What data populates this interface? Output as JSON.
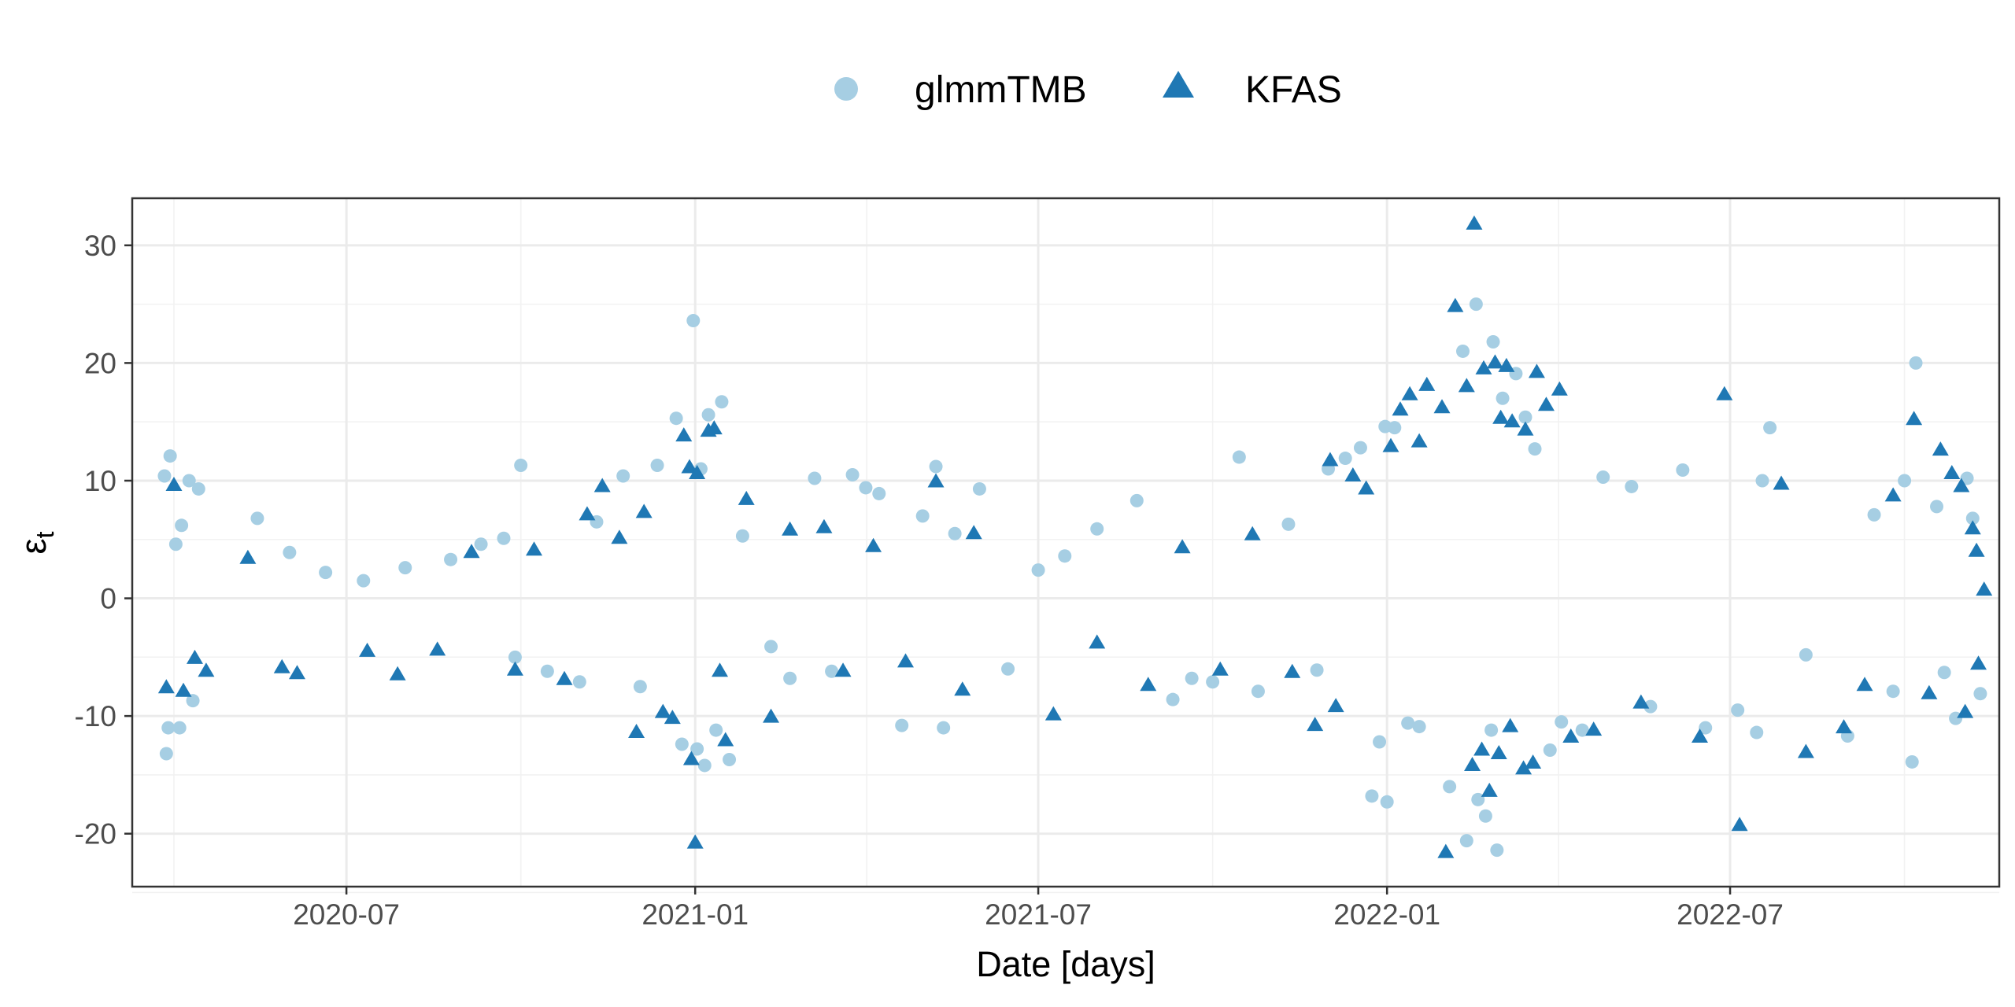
{
  "chart_data": {
    "type": "scatter",
    "xlabel": "Date [days]",
    "ylabel": "ε",
    "ylabel_subscript": "t",
    "legend_position": "top",
    "grid": true,
    "x_range": [
      "2020-03-10",
      "2022-11-20"
    ],
    "ylim": [
      -24.5,
      34
    ],
    "x_ticks": [
      {
        "date": "2020-07-01",
        "label": "2020-07"
      },
      {
        "date": "2021-01-01",
        "label": "2021-01"
      },
      {
        "date": "2021-07-01",
        "label": "2021-07"
      },
      {
        "date": "2022-01-01",
        "label": "2022-01"
      },
      {
        "date": "2022-07-01",
        "label": "2022-07"
      }
    ],
    "y_ticks": [
      -20,
      -10,
      0,
      10,
      20,
      30
    ],
    "series": [
      {
        "name": "glmmTMB",
        "marker": "circle",
        "color": "#a6cee3",
        "points": [
          [
            "2020-03-30",
            12.1
          ],
          [
            "2020-03-27",
            10.4
          ],
          [
            "2020-04-05",
            6.2
          ],
          [
            "2020-04-09",
            10.0
          ],
          [
            "2020-04-14",
            9.3
          ],
          [
            "2020-03-28",
            -13.2
          ],
          [
            "2020-03-29",
            -11.0
          ],
          [
            "2020-04-04",
            -11.0
          ],
          [
            "2020-04-11",
            -8.7
          ],
          [
            "2020-04-02",
            4.6
          ],
          [
            "2020-05-15",
            6.8
          ],
          [
            "2020-06-01",
            3.9
          ],
          [
            "2020-06-20",
            2.2
          ],
          [
            "2020-07-10",
            1.5
          ],
          [
            "2020-08-01",
            2.6
          ],
          [
            "2020-08-25",
            3.3
          ],
          [
            "2020-09-10",
            4.6
          ],
          [
            "2020-09-22",
            5.1
          ],
          [
            "2020-10-01",
            11.3
          ],
          [
            "2020-09-28",
            -5.0
          ],
          [
            "2020-10-15",
            -6.2
          ],
          [
            "2020-11-01",
            -7.1
          ],
          [
            "2020-11-10",
            6.5
          ],
          [
            "2020-11-24",
            10.4
          ],
          [
            "2020-12-03",
            -7.5
          ],
          [
            "2020-12-12",
            11.3
          ],
          [
            "2020-12-22",
            15.3
          ],
          [
            "2020-12-31",
            23.6
          ],
          [
            "2021-01-04",
            11.0
          ],
          [
            "2021-01-08",
            15.6
          ],
          [
            "2021-01-15",
            16.7
          ],
          [
            "2020-12-25",
            -12.4
          ],
          [
            "2021-01-02",
            -12.8
          ],
          [
            "2021-01-06",
            -14.2
          ],
          [
            "2021-01-12",
            -11.2
          ],
          [
            "2021-01-19",
            -13.7
          ],
          [
            "2021-01-26",
            5.3
          ],
          [
            "2021-02-10",
            -4.1
          ],
          [
            "2021-02-20",
            -6.8
          ],
          [
            "2021-03-05",
            10.2
          ],
          [
            "2021-03-14",
            -6.2
          ],
          [
            "2021-03-25",
            10.5
          ],
          [
            "2021-04-01",
            9.4
          ],
          [
            "2021-04-08",
            8.9
          ],
          [
            "2021-04-20",
            -10.8
          ],
          [
            "2021-05-01",
            7.0
          ],
          [
            "2021-05-08",
            11.2
          ],
          [
            "2021-05-12",
            -11.0
          ],
          [
            "2021-05-18",
            5.5
          ],
          [
            "2021-05-31",
            9.3
          ],
          [
            "2021-06-15",
            -6.0
          ],
          [
            "2021-07-01",
            2.4
          ],
          [
            "2021-07-15",
            3.6
          ],
          [
            "2021-08-01",
            5.9
          ],
          [
            "2021-08-22",
            8.3
          ],
          [
            "2021-09-10",
            -8.6
          ],
          [
            "2021-09-20",
            -6.8
          ],
          [
            "2021-10-01",
            -7.1
          ],
          [
            "2021-10-15",
            12.0
          ],
          [
            "2021-10-25",
            -7.9
          ],
          [
            "2021-11-10",
            6.3
          ],
          [
            "2021-11-25",
            -6.1
          ],
          [
            "2021-12-01",
            11.0
          ],
          [
            "2021-12-10",
            11.9
          ],
          [
            "2021-12-18",
            12.8
          ],
          [
            "2021-12-28",
            -12.2
          ],
          [
            "2021-12-24",
            -16.8
          ],
          [
            "2022-01-01",
            -17.3
          ],
          [
            "2021-12-31",
            14.6
          ],
          [
            "2022-01-05",
            14.5
          ],
          [
            "2022-01-12",
            -10.6
          ],
          [
            "2022-01-18",
            -10.9
          ],
          [
            "2022-02-03",
            -16.0
          ],
          [
            "2022-02-12",
            -20.6
          ],
          [
            "2022-02-18",
            -17.1
          ],
          [
            "2022-02-22",
            -18.5
          ],
          [
            "2022-02-28",
            -21.4
          ],
          [
            "2022-02-25",
            -11.2
          ],
          [
            "2022-02-10",
            21.0
          ],
          [
            "2022-02-17",
            25.0
          ],
          [
            "2022-02-26",
            21.8
          ],
          [
            "2022-03-03",
            17.0
          ],
          [
            "2022-03-10",
            19.1
          ],
          [
            "2022-03-15",
            15.4
          ],
          [
            "2022-03-20",
            12.7
          ],
          [
            "2022-03-28",
            -12.9
          ],
          [
            "2022-04-03",
            -10.5
          ],
          [
            "2022-04-14",
            -11.2
          ],
          [
            "2022-04-25",
            10.3
          ],
          [
            "2022-05-10",
            9.5
          ],
          [
            "2022-05-20",
            -9.2
          ],
          [
            "2022-06-06",
            10.9
          ],
          [
            "2022-06-18",
            -11.0
          ],
          [
            "2022-07-05",
            -9.5
          ],
          [
            "2022-07-18",
            10.0
          ],
          [
            "2022-07-22",
            14.5
          ],
          [
            "2022-07-15",
            -11.4
          ],
          [
            "2022-08-10",
            -4.8
          ],
          [
            "2022-09-01",
            -11.7
          ],
          [
            "2022-09-15",
            7.1
          ],
          [
            "2022-09-25",
            -7.9
          ],
          [
            "2022-10-01",
            10.0
          ],
          [
            "2022-10-05",
            -13.9
          ],
          [
            "2022-10-07",
            20.0
          ],
          [
            "2022-10-18",
            7.8
          ],
          [
            "2022-10-28",
            -10.2
          ],
          [
            "2022-11-03",
            10.2
          ],
          [
            "2022-11-10",
            -8.1
          ],
          [
            "2022-11-06",
            6.8
          ],
          [
            "2022-10-22",
            -6.3
          ]
        ]
      },
      {
        "name": "KFAS",
        "marker": "triangle",
        "color": "#1f78b4",
        "points": [
          [
            "2020-03-28",
            -7.6
          ],
          [
            "2020-04-01",
            9.6
          ],
          [
            "2020-04-06",
            -7.9
          ],
          [
            "2020-04-12",
            -5.1
          ],
          [
            "2020-04-18",
            -6.2
          ],
          [
            "2020-05-10",
            3.4
          ],
          [
            "2020-05-28",
            -5.9
          ],
          [
            "2020-06-05",
            -6.4
          ],
          [
            "2020-07-12",
            -4.5
          ],
          [
            "2020-07-28",
            -6.5
          ],
          [
            "2020-08-18",
            -4.4
          ],
          [
            "2020-09-05",
            3.9
          ],
          [
            "2020-09-28",
            -6.1
          ],
          [
            "2020-10-08",
            4.1
          ],
          [
            "2020-10-24",
            -6.9
          ],
          [
            "2020-11-05",
            7.1
          ],
          [
            "2020-11-13",
            9.5
          ],
          [
            "2020-11-22",
            5.1
          ],
          [
            "2020-12-05",
            7.3
          ],
          [
            "2020-12-01",
            -11.4
          ],
          [
            "2020-12-15",
            -9.7
          ],
          [
            "2020-12-20",
            -10.2
          ],
          [
            "2020-12-26",
            13.8
          ],
          [
            "2020-12-29",
            11.1
          ],
          [
            "2021-01-02",
            10.6
          ],
          [
            "2021-01-08",
            14.2
          ],
          [
            "2021-01-11",
            14.4
          ],
          [
            "2021-01-01",
            -20.8
          ],
          [
            "2020-12-30",
            -13.7
          ],
          [
            "2021-01-14",
            -6.2
          ],
          [
            "2021-01-17",
            -12.1
          ],
          [
            "2021-01-28",
            8.4
          ],
          [
            "2021-02-10",
            -10.1
          ],
          [
            "2021-02-20",
            5.8
          ],
          [
            "2021-03-10",
            6.0
          ],
          [
            "2021-03-20",
            -6.2
          ],
          [
            "2021-04-05",
            4.4
          ],
          [
            "2021-04-22",
            -5.4
          ],
          [
            "2021-05-08",
            9.9
          ],
          [
            "2021-05-22",
            -7.8
          ],
          [
            "2021-05-28",
            5.5
          ],
          [
            "2021-07-09",
            -9.9
          ],
          [
            "2021-08-01",
            -3.8
          ],
          [
            "2021-08-28",
            -7.4
          ],
          [
            "2021-09-15",
            4.3
          ],
          [
            "2021-10-05",
            -6.1
          ],
          [
            "2021-10-22",
            5.4
          ],
          [
            "2021-11-12",
            -6.3
          ],
          [
            "2021-11-24",
            -10.8
          ],
          [
            "2021-12-05",
            -9.2
          ],
          [
            "2021-12-02",
            11.7
          ],
          [
            "2021-12-14",
            10.4
          ],
          [
            "2021-12-21",
            9.3
          ],
          [
            "2022-01-03",
            12.9
          ],
          [
            "2022-01-08",
            16.0
          ],
          [
            "2022-01-13",
            17.3
          ],
          [
            "2022-01-18",
            13.3
          ],
          [
            "2022-01-22",
            18.1
          ],
          [
            "2022-01-30",
            16.2
          ],
          [
            "2022-02-06",
            24.8
          ],
          [
            "2022-02-12",
            18.0
          ],
          [
            "2022-02-16",
            31.8
          ],
          [
            "2022-02-21",
            19.5
          ],
          [
            "2022-02-27",
            20.0
          ],
          [
            "2022-03-05",
            19.7
          ],
          [
            "2022-03-02",
            15.3
          ],
          [
            "2022-03-08",
            15.0
          ],
          [
            "2022-03-15",
            14.3
          ],
          [
            "2022-03-21",
            19.2
          ],
          [
            "2022-03-26",
            16.4
          ],
          [
            "2022-04-02",
            17.7
          ],
          [
            "2022-02-01",
            -21.6
          ],
          [
            "2022-02-15",
            -14.2
          ],
          [
            "2022-02-20",
            -12.9
          ],
          [
            "2022-02-24",
            -16.4
          ],
          [
            "2022-03-01",
            -13.2
          ],
          [
            "2022-03-07",
            -10.9
          ],
          [
            "2022-03-14",
            -14.5
          ],
          [
            "2022-03-19",
            -14.0
          ],
          [
            "2022-04-08",
            -11.8
          ],
          [
            "2022-04-20",
            -11.2
          ],
          [
            "2022-05-15",
            -8.9
          ],
          [
            "2022-06-28",
            17.3
          ],
          [
            "2022-06-15",
            -11.8
          ],
          [
            "2022-07-06",
            -19.3
          ],
          [
            "2022-07-28",
            9.7
          ],
          [
            "2022-08-10",
            -13.1
          ],
          [
            "2022-08-30",
            -11.0
          ],
          [
            "2022-09-10",
            -7.4
          ],
          [
            "2022-09-25",
            8.7
          ],
          [
            "2022-10-06",
            15.2
          ],
          [
            "2022-10-14",
            -8.1
          ],
          [
            "2022-10-20",
            12.6
          ],
          [
            "2022-10-26",
            10.6
          ],
          [
            "2022-10-31",
            9.5
          ],
          [
            "2022-11-02",
            -9.7
          ],
          [
            "2022-11-06",
            5.9
          ],
          [
            "2022-11-09",
            -5.6
          ],
          [
            "2022-11-12",
            0.7
          ],
          [
            "2022-11-08",
            4.0
          ]
        ]
      }
    ]
  }
}
